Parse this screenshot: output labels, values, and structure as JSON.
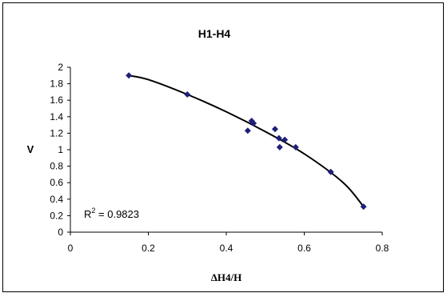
{
  "chart_data": {
    "type": "scatter",
    "title": "H1-H4",
    "xlabel": "ΔH4/H",
    "ylabel": "V",
    "xlim": [
      0,
      0.8
    ],
    "ylim": [
      0,
      2
    ],
    "x_ticks": [
      "0",
      "0.2",
      "0.4",
      "0.6",
      "0.8"
    ],
    "y_ticks": [
      "0",
      "0.2",
      "0.4",
      "0.6",
      "0.8",
      "1",
      "1.2",
      "1.4",
      "1.6",
      "1.8",
      "2"
    ],
    "grid": false,
    "legend": "none",
    "marker_color": "#1f1f7a",
    "trendline_color": "#000000",
    "points": [
      {
        "x": 0.15,
        "y": 1.9
      },
      {
        "x": 0.3,
        "y": 1.67
      },
      {
        "x": 0.455,
        "y": 1.23
      },
      {
        "x": 0.465,
        "y": 1.35
      },
      {
        "x": 0.47,
        "y": 1.32
      },
      {
        "x": 0.525,
        "y": 1.25
      },
      {
        "x": 0.535,
        "y": 1.14
      },
      {
        "x": 0.537,
        "y": 1.03
      },
      {
        "x": 0.55,
        "y": 1.12
      },
      {
        "x": 0.578,
        "y": 1.03
      },
      {
        "x": 0.668,
        "y": 0.73
      },
      {
        "x": 0.752,
        "y": 0.31
      }
    ],
    "trendline": {
      "type": "polynomial",
      "x_range": [
        0.15,
        0.752
      ],
      "points": [
        {
          "x": 0.15,
          "y": 1.9
        },
        {
          "x": 0.2,
          "y": 1.85
        },
        {
          "x": 0.3,
          "y": 1.67
        },
        {
          "x": 0.4,
          "y": 1.46
        },
        {
          "x": 0.5,
          "y": 1.22
        },
        {
          "x": 0.6,
          "y": 0.95
        },
        {
          "x": 0.7,
          "y": 0.6
        },
        {
          "x": 0.752,
          "y": 0.31
        }
      ]
    },
    "annotation": {
      "text": "R",
      "sup": "2",
      "rest": " = 0.9823"
    }
  }
}
